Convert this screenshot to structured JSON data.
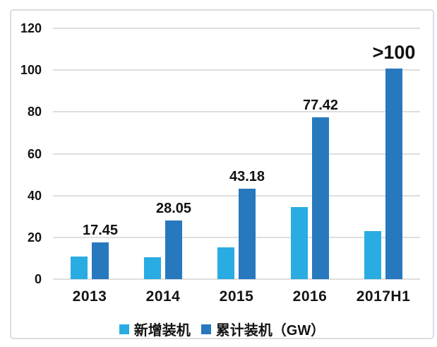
{
  "colors": {
    "series_new": "#29ACE2",
    "series_cumulative": "#2878BE",
    "grid": "#dedede",
    "panel_border": "#d9dde2",
    "text": "#141414"
  },
  "chart_data": {
    "type": "bar",
    "categories": [
      "2013",
      "2014",
      "2015",
      "2016",
      "2017H1"
    ],
    "series": [
      {
        "name": "新增装机",
        "color": "#29ACE2",
        "values": [
          10.95,
          10.6,
          15.1,
          34.5,
          23
        ],
        "labels": [
          "",
          "",
          "",
          "",
          ""
        ]
      },
      {
        "name": "累计装机（GW）",
        "color": "#2878BE",
        "values": [
          17.45,
          28.05,
          43.18,
          77.42,
          100.7
        ],
        "labels": [
          "17.45",
          "28.05",
          "43.18",
          "77.42",
          ">100"
        ],
        "label_sizes": [
          "normal",
          "normal",
          "normal",
          "normal",
          "large"
        ]
      }
    ],
    "ylim": [
      0,
      120
    ],
    "yticks": [
      0,
      20,
      40,
      60,
      80,
      100,
      120
    ],
    "xlabel": "",
    "ylabel": "",
    "grid": true,
    "legend_position": "bottom"
  }
}
